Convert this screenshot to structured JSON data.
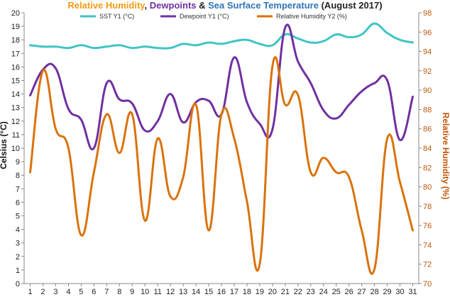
{
  "chart_data": {
    "type": "line",
    "title_parts": [
      {
        "text": "Relative Humidity",
        "color": "#f39c12"
      },
      {
        "text": ", ",
        "color": "#222222"
      },
      {
        "text": "Dewpoints",
        "color": "#7030a0"
      },
      {
        "text": " & ",
        "color": "#222222"
      },
      {
        "text": "Sea Surface Temperature",
        "color": "#2e75b6"
      },
      {
        "text": " (August 2017)",
        "color": "#222222"
      }
    ],
    "ylabel": "Celsius (°C)",
    "y2label": "Relative Humidity (%)",
    "ylim": [
      0,
      20
    ],
    "y2lim": [
      70,
      98
    ],
    "grid": false,
    "legend_position": "top",
    "x": [
      1,
      2,
      3,
      4,
      5,
      6,
      7,
      8,
      9,
      10,
      11,
      12,
      13,
      14,
      15,
      16,
      17,
      18,
      19,
      20,
      21,
      22,
      23,
      24,
      25,
      26,
      27,
      28,
      29,
      30,
      31
    ],
    "yticks": [
      0,
      1,
      2,
      3,
      4,
      5,
      6,
      7,
      8,
      9,
      10,
      11,
      12,
      13,
      14,
      15,
      16,
      17,
      18,
      19,
      20
    ],
    "y2ticks": [
      70,
      72,
      74,
      76,
      78,
      80,
      82,
      84,
      86,
      88,
      90,
      92,
      94,
      96,
      98
    ],
    "series": [
      {
        "name": "SST Y1 (°C)",
        "axis": "left",
        "color": "#40c4c4",
        "values": [
          17.6,
          17.5,
          17.5,
          17.4,
          17.6,
          17.4,
          17.5,
          17.6,
          17.4,
          17.5,
          17.4,
          17.4,
          17.7,
          17.6,
          17.8,
          17.7,
          17.9,
          18.0,
          17.7,
          17.6,
          18.4,
          18.1,
          17.8,
          17.9,
          18.4,
          18.2,
          18.4,
          19.2,
          18.5,
          18.0,
          17.8
        ]
      },
      {
        "name": "Dewpoint Y1 (°C)",
        "axis": "left",
        "color": "#7030a0",
        "values": [
          13.9,
          15.8,
          15.9,
          12.9,
          12.1,
          10.0,
          14.8,
          13.6,
          13.3,
          11.3,
          12.0,
          14.0,
          11.9,
          13.4,
          13.5,
          12.5,
          16.7,
          13.4,
          11.8,
          11.4,
          18.9,
          16.4,
          14.8,
          12.8,
          12.2,
          13.2,
          14.2,
          14.8,
          15.0,
          10.6,
          13.8
        ]
      },
      {
        "name": "Relative Humidity Y2 (%)",
        "axis": "right",
        "color": "#d9730d",
        "values": [
          81.5,
          92.0,
          86.0,
          84.0,
          75.0,
          81.5,
          87.5,
          83.5,
          87.5,
          76.5,
          85.0,
          79.0,
          81.0,
          88.5,
          75.5,
          87.5,
          85.0,
          78.5,
          72.0,
          92.5,
          88.5,
          89.5,
          81.5,
          83.0,
          81.5,
          81.0,
          75.5,
          71.5,
          85.0,
          80.5,
          75.5
        ]
      }
    ]
  }
}
